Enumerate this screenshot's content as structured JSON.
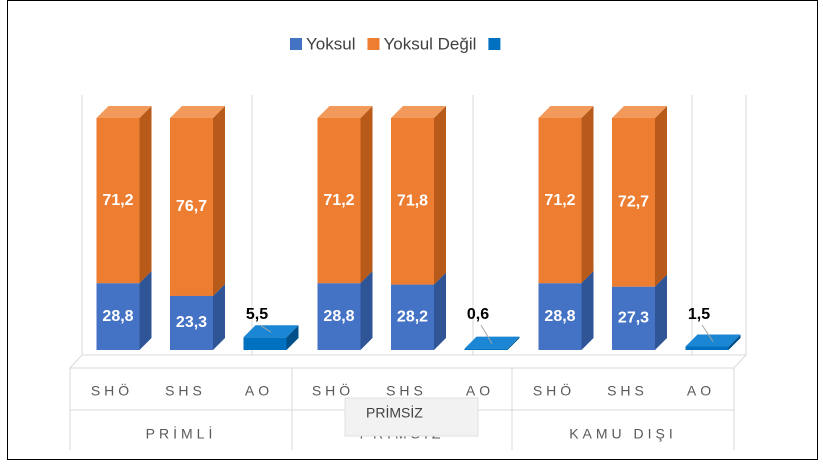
{
  "chart_data": {
    "type": "bar3d_stacked",
    "categories": [
      "SHÖ",
      "SHS",
      "AO",
      "SHÖ",
      "SHS",
      "AO",
      "SHÖ",
      "SHS",
      "AO"
    ],
    "groups": [
      "PRİMLİ",
      "PRİMSİZ",
      "KAMU DIŞI"
    ],
    "series": [
      {
        "name": "Yoksul",
        "color": "#4472c4",
        "side": "#2f5597",
        "top": "#6f93d6",
        "values": [
          28.8,
          23.3,
          null,
          28.8,
          28.2,
          null,
          28.8,
          27.3,
          null
        ],
        "value_labels": [
          "28,8",
          "23,3",
          null,
          "28,8",
          "28,2",
          null,
          "28,8",
          "27,3",
          null
        ]
      },
      {
        "name": "Yoksul Değil",
        "color": "#ed7d31",
        "side": "#b85a1a",
        "top": "#f29a5c",
        "values": [
          71.2,
          76.7,
          null,
          71.2,
          71.8,
          null,
          71.2,
          72.7,
          null
        ],
        "value_labels": [
          "71,2",
          "76,7",
          null,
          "71,2",
          "71,8",
          null,
          "71,2",
          "72,7",
          null
        ]
      },
      {
        "color": "#0070c0",
        "side": "#004f88",
        "top": "#1a86d4",
        "values": [
          null,
          null,
          5.5,
          null,
          null,
          0.6,
          null,
          null,
          1.5
        ],
        "value_labels": [
          null,
          null,
          "5,5",
          null,
          null,
          "0,6",
          null,
          null,
          "1,5"
        ]
      }
    ],
    "ylim": [
      0,
      100
    ],
    "tooltip": "PRİMSİZ"
  }
}
